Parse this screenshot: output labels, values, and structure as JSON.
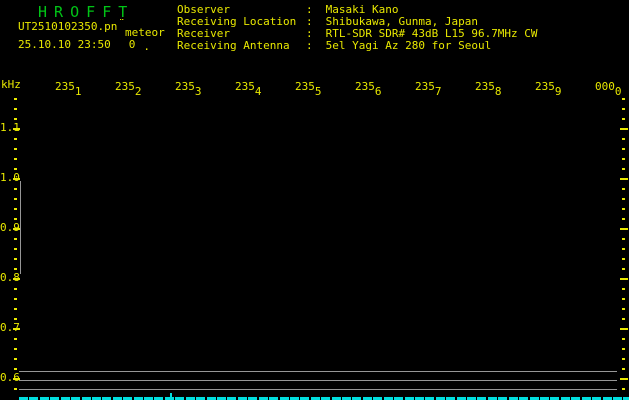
{
  "header": {
    "app_title": "H R O F F T",
    "filename": "UT2510102350.pn",
    "filename_artifact": "¨",
    "station": "meteor",
    "datetime": "25.10.10 23:50",
    "count": "0",
    "count_dot": ".",
    "separator": ":",
    "info": [
      {
        "label": "Observer",
        "value": "Masaki Kano"
      },
      {
        "label": "Receiving Location",
        "value": "Shibukawa, Gunma, Japan"
      },
      {
        "label": "Receiver",
        "value": "RTL-SDR SDR# 43dB L15 96.7MHz CW"
      },
      {
        "label": "Receiving Antenna",
        "value": "5el Yagi Az 280 for Seoul"
      }
    ]
  },
  "chart_data": {
    "type": "heatmap",
    "subtype": "radio-meteor-echo-spectrogram",
    "title": "",
    "ylabel": "kHz",
    "x_tick_labels": [
      "2351",
      "2352",
      "2353",
      "2354",
      "2355",
      "2356",
      "2357",
      "2358",
      "2359",
      "0000"
    ],
    "y_tick_labels": [
      "1.1",
      "1.0",
      "0.9",
      "0.8",
      "0.7",
      "0.6"
    ],
    "ylim": [
      0.575,
      1.17
    ],
    "values": [],
    "signal_present": false,
    "echo_count_shown": "0",
    "count_range_khz": [
      0.8,
      1.0
    ],
    "grid": false,
    "legend": "none",
    "background_color": "#000000"
  },
  "colors": {
    "background": "#000000",
    "title_green": "#00c416",
    "text_yellow": "#e8e800",
    "axis_yellow": "#e8e800",
    "gray_line": "#969696",
    "cyan_bar": "#00dede"
  }
}
